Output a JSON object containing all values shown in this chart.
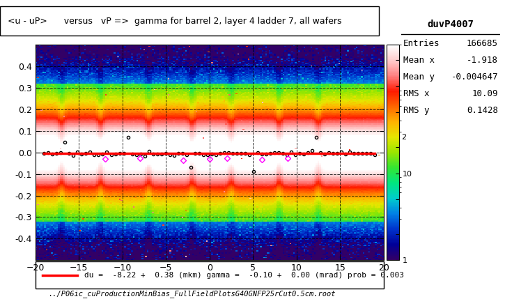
{
  "title": "<u - uP>      versus   vP =>  gamma for barrel 2, layer 4 ladder 7, all wafers",
  "xlabel": "",
  "ylabel": "",
  "xlim": [
    -20,
    20
  ],
  "ylim": [
    -0.5,
    0.5
  ],
  "colorbar_min": 1,
  "colorbar_max": 100,
  "stats_title": "duvP4007",
  "stats_entries": "166685",
  "stats_mean_x": "-1.918",
  "stats_mean_y": "-0.004647",
  "stats_rms_x": "10.09",
  "stats_rms_y": "0.1428",
  "fit_text": "du =  -8.22 +  0.38 (mkm) gamma =  -0.10 +  0.00 (mrad) prob = 0.003",
  "footer": "../P06ic_cuProductionMinBias_FullFieldPlotsG40GNFP25rCut0.5cm.root",
  "colorbar_label2": "2",
  "colorbar_label10": "10"
}
